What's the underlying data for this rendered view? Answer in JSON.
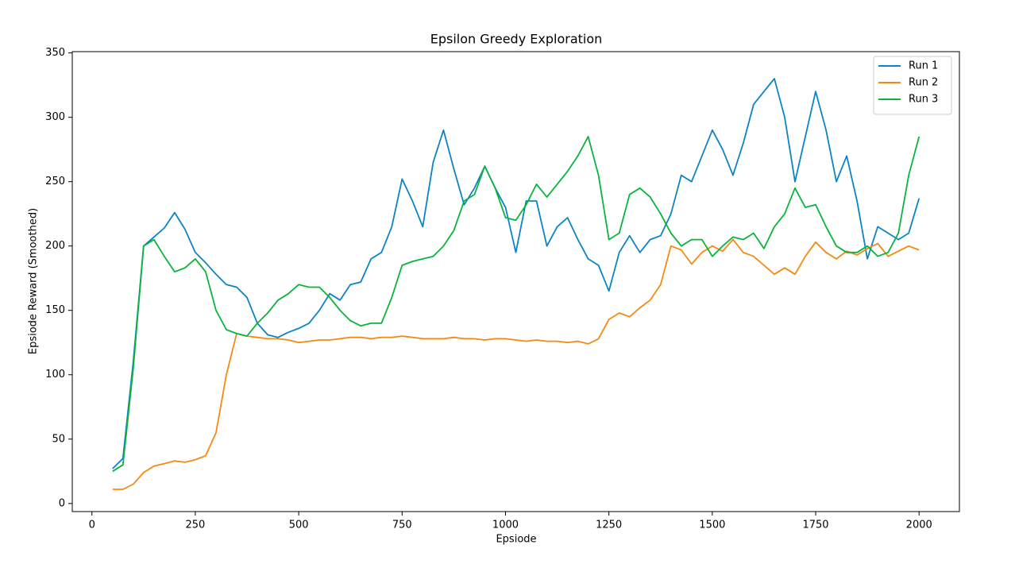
{
  "chart_data": {
    "type": "line",
    "title": "Epsilon Greedy Exploration",
    "x_label": "Epsiode",
    "y_label": "Epsiode Reward (Smoothed)",
    "x": [
      50,
      75,
      100,
      125,
      150,
      175,
      200,
      225,
      250,
      275,
      300,
      325,
      350,
      375,
      400,
      425,
      450,
      475,
      500,
      525,
      550,
      575,
      600,
      625,
      650,
      675,
      700,
      725,
      750,
      775,
      800,
      825,
      850,
      875,
      900,
      925,
      950,
      975,
      1000,
      1025,
      1050,
      1075,
      1100,
      1125,
      1150,
      1175,
      1200,
      1225,
      1250,
      1275,
      1300,
      1325,
      1350,
      1375,
      1400,
      1425,
      1450,
      1475,
      1500,
      1525,
      1550,
      1575,
      1600,
      1625,
      1650,
      1675,
      1700,
      1725,
      1750,
      1775,
      1800,
      1825,
      1850,
      1875,
      1900,
      1925,
      1950,
      1975,
      2000
    ],
    "series": [
      {
        "name": "Run 1",
        "color": "#0b84c5",
        "values": [
          27,
          35,
          110,
          200,
          207,
          214,
          226,
          213,
          195,
          187,
          178,
          170,
          168,
          160,
          140,
          131,
          129,
          133,
          136,
          140,
          150,
          163,
          158,
          170,
          172,
          190,
          195,
          215,
          252,
          235,
          215,
          265,
          290,
          260,
          232,
          245,
          262,
          245,
          230,
          195,
          235,
          235,
          200,
          215,
          222,
          205,
          190,
          185,
          165,
          195,
          208,
          195,
          205,
          208,
          225,
          255,
          250,
          270,
          290,
          275,
          255,
          280,
          310,
          320,
          330,
          300,
          250,
          285,
          320,
          290,
          250,
          270,
          235,
          190,
          215,
          210,
          205,
          210,
          237
        ]
      },
      {
        "name": "Run 2",
        "color": "#f58a12",
        "values": [
          11,
          11,
          15,
          24,
          29,
          31,
          33,
          32,
          34,
          37,
          55,
          100,
          132,
          130,
          129,
          128,
          128,
          127,
          125,
          126,
          127,
          127,
          128,
          129,
          129,
          128,
          129,
          129,
          130,
          129,
          128,
          128,
          128,
          129,
          128,
          128,
          127,
          128,
          128,
          127,
          126,
          127,
          126,
          126,
          125,
          126,
          124,
          128,
          143,
          148,
          145,
          152,
          158,
          170,
          200,
          197,
          186,
          195,
          200,
          196,
          205,
          195,
          192,
          185,
          178,
          183,
          178,
          192,
          203,
          195,
          190,
          196,
          193,
          198,
          202,
          192,
          196,
          200,
          197
        ]
      },
      {
        "name": "Run 3",
        "color": "#0ab43c",
        "values": [
          25,
          30,
          105,
          200,
          205,
          192,
          180,
          183,
          190,
          180,
          150,
          135,
          132,
          130,
          140,
          148,
          158,
          163,
          170,
          168,
          168,
          160,
          150,
          142,
          138,
          140,
          140,
          160,
          185,
          188,
          190,
          192,
          200,
          212,
          235,
          240,
          262,
          245,
          222,
          220,
          232,
          248,
          238,
          248,
          258,
          270,
          285,
          255,
          205,
          210,
          240,
          245,
          238,
          225,
          210,
          200,
          205,
          205,
          192,
          200,
          207,
          205,
          210,
          198,
          215,
          225,
          245,
          230,
          232,
          215,
          200,
          195,
          195,
          200,
          192,
          195,
          210,
          255,
          285
        ]
      }
    ],
    "xlim": [
      -47.5,
      2097.5
    ],
    "ylim": [
      -6.3,
      351
    ],
    "xticks": [
      0,
      250,
      500,
      750,
      1000,
      1250,
      1500,
      1750,
      2000
    ],
    "yticks": [
      0,
      50,
      100,
      150,
      200,
      250,
      300,
      350
    ],
    "legend": "upper right"
  }
}
